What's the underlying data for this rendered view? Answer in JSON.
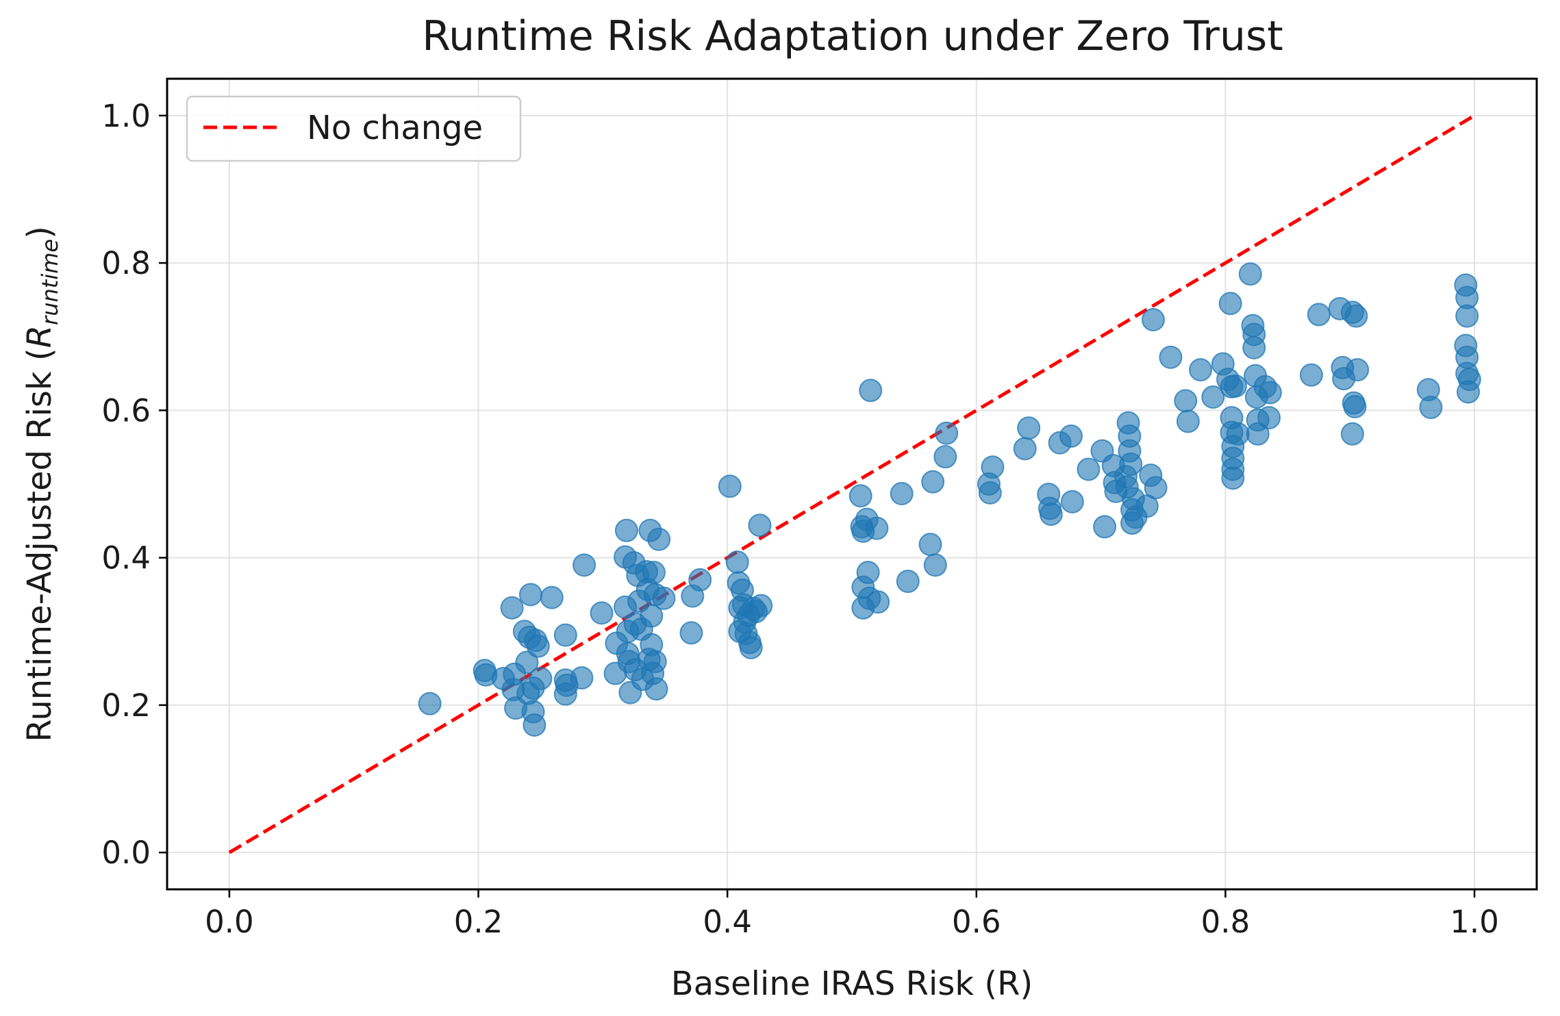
{
  "chart_data": {
    "type": "scatter",
    "title": "Runtime Risk Adaptation under Zero Trust",
    "xlabel": "Baseline IRAS Risk (R)",
    "ylabel_main": "Runtime-Adjusted Risk (",
    "ylabel_symbol": "R",
    "ylabel_subscript": "runtime",
    "ylabel_close": ")",
    "xlim": [
      -0.05,
      1.05
    ],
    "ylim": [
      -0.05,
      1.05
    ],
    "x_ticks": [
      0.0,
      0.2,
      0.4,
      0.6,
      0.8,
      1.0
    ],
    "x_tick_labels": [
      "0.0",
      "0.2",
      "0.4",
      "0.6",
      "0.8",
      "1.0"
    ],
    "y_ticks": [
      0.0,
      0.2,
      0.4,
      0.6,
      0.8,
      1.0
    ],
    "y_tick_labels": [
      "0.0",
      "0.2",
      "0.4",
      "0.6",
      "0.8",
      "1.0"
    ],
    "grid": true,
    "legend": {
      "position": "top-left",
      "entries": [
        {
          "label": "No change",
          "style": "dashed",
          "color": "#ff0000"
        }
      ]
    },
    "reference_line": {
      "name": "No change",
      "x": [
        0.0,
        1.0
      ],
      "y": [
        0.0,
        1.0
      ],
      "color": "#ff0000",
      "style": "dashed"
    },
    "point_color": "#1f77b4",
    "points": [
      [
        0.161,
        0.202
      ],
      [
        0.205,
        0.247
      ],
      [
        0.206,
        0.241
      ],
      [
        0.22,
        0.236
      ],
      [
        0.227,
        0.332
      ],
      [
        0.228,
        0.221
      ],
      [
        0.229,
        0.242
      ],
      [
        0.23,
        0.196
      ],
      [
        0.237,
        0.3
      ],
      [
        0.239,
        0.258
      ],
      [
        0.24,
        0.216
      ],
      [
        0.241,
        0.292
      ],
      [
        0.242,
        0.35
      ],
      [
        0.244,
        0.223
      ],
      [
        0.244,
        0.191
      ],
      [
        0.245,
        0.173
      ],
      [
        0.246,
        0.288
      ],
      [
        0.248,
        0.28
      ],
      [
        0.25,
        0.236
      ],
      [
        0.259,
        0.346
      ],
      [
        0.27,
        0.295
      ],
      [
        0.27,
        0.234
      ],
      [
        0.27,
        0.215
      ],
      [
        0.271,
        0.227
      ],
      [
        0.283,
        0.237
      ],
      [
        0.285,
        0.39
      ],
      [
        0.299,
        0.325
      ],
      [
        0.31,
        0.243
      ],
      [
        0.311,
        0.284
      ],
      [
        0.318,
        0.333
      ],
      [
        0.318,
        0.401
      ],
      [
        0.319,
        0.437
      ],
      [
        0.32,
        0.3
      ],
      [
        0.32,
        0.27
      ],
      [
        0.321,
        0.259
      ],
      [
        0.322,
        0.217
      ],
      [
        0.325,
        0.393
      ],
      [
        0.326,
        0.31
      ],
      [
        0.326,
        0.248
      ],
      [
        0.328,
        0.376
      ],
      [
        0.329,
        0.341
      ],
      [
        0.331,
        0.303
      ],
      [
        0.332,
        0.235
      ],
      [
        0.335,
        0.381
      ],
      [
        0.336,
        0.357
      ],
      [
        0.337,
        0.262
      ],
      [
        0.338,
        0.437
      ],
      [
        0.339,
        0.321
      ],
      [
        0.339,
        0.282
      ],
      [
        0.34,
        0.243
      ],
      [
        0.341,
        0.38
      ],
      [
        0.342,
        0.35
      ],
      [
        0.342,
        0.259
      ],
      [
        0.343,
        0.222
      ],
      [
        0.345,
        0.425
      ],
      [
        0.349,
        0.345
      ],
      [
        0.371,
        0.298
      ],
      [
        0.372,
        0.348
      ],
      [
        0.378,
        0.37
      ],
      [
        0.402,
        0.497
      ],
      [
        0.408,
        0.394
      ],
      [
        0.409,
        0.366
      ],
      [
        0.41,
        0.332
      ],
      [
        0.41,
        0.3
      ],
      [
        0.412,
        0.356
      ],
      [
        0.413,
        0.336
      ],
      [
        0.414,
        0.313
      ],
      [
        0.415,
        0.297
      ],
      [
        0.417,
        0.322
      ],
      [
        0.418,
        0.285
      ],
      [
        0.419,
        0.278
      ],
      [
        0.421,
        0.331
      ],
      [
        0.423,
        0.327
      ],
      [
        0.426,
        0.444
      ],
      [
        0.427,
        0.335
      ],
      [
        0.507,
        0.484
      ],
      [
        0.508,
        0.442
      ],
      [
        0.509,
        0.436
      ],
      [
        0.509,
        0.36
      ],
      [
        0.509,
        0.332
      ],
      [
        0.512,
        0.452
      ],
      [
        0.513,
        0.38
      ],
      [
        0.514,
        0.345
      ],
      [
        0.515,
        0.627
      ],
      [
        0.52,
        0.44
      ],
      [
        0.521,
        0.34
      ],
      [
        0.54,
        0.487
      ],
      [
        0.545,
        0.368
      ],
      [
        0.563,
        0.418
      ],
      [
        0.565,
        0.503
      ],
      [
        0.567,
        0.39
      ],
      [
        0.575,
        0.537
      ],
      [
        0.576,
        0.569
      ],
      [
        0.61,
        0.5
      ],
      [
        0.611,
        0.488
      ],
      [
        0.613,
        0.523
      ],
      [
        0.639,
        0.548
      ],
      [
        0.642,
        0.576
      ],
      [
        0.658,
        0.486
      ],
      [
        0.659,
        0.467
      ],
      [
        0.66,
        0.459
      ],
      [
        0.667,
        0.556
      ],
      [
        0.676,
        0.565
      ],
      [
        0.677,
        0.476
      ],
      [
        0.69,
        0.52
      ],
      [
        0.701,
        0.545
      ],
      [
        0.703,
        0.442
      ],
      [
        0.71,
        0.525
      ],
      [
        0.711,
        0.502
      ],
      [
        0.712,
        0.49
      ],
      [
        0.72,
        0.51
      ],
      [
        0.721,
        0.496
      ],
      [
        0.722,
        0.583
      ],
      [
        0.723,
        0.565
      ],
      [
        0.723,
        0.545
      ],
      [
        0.724,
        0.527
      ],
      [
        0.725,
        0.465
      ],
      [
        0.725,
        0.447
      ],
      [
        0.726,
        0.48
      ],
      [
        0.728,
        0.455
      ],
      [
        0.737,
        0.47
      ],
      [
        0.74,
        0.512
      ],
      [
        0.742,
        0.723
      ],
      [
        0.744,
        0.495
      ],
      [
        0.756,
        0.672
      ],
      [
        0.768,
        0.613
      ],
      [
        0.77,
        0.585
      ],
      [
        0.78,
        0.655
      ],
      [
        0.79,
        0.618
      ],
      [
        0.798,
        0.663
      ],
      [
        0.802,
        0.642
      ],
      [
        0.804,
        0.745
      ],
      [
        0.805,
        0.632
      ],
      [
        0.805,
        0.59
      ],
      [
        0.805,
        0.57
      ],
      [
        0.806,
        0.551
      ],
      [
        0.806,
        0.535
      ],
      [
        0.806,
        0.52
      ],
      [
        0.806,
        0.508
      ],
      [
        0.808,
        0.633
      ],
      [
        0.81,
        0.568
      ],
      [
        0.82,
        0.785
      ],
      [
        0.822,
        0.715
      ],
      [
        0.823,
        0.703
      ],
      [
        0.823,
        0.685
      ],
      [
        0.824,
        0.647
      ],
      [
        0.825,
        0.618
      ],
      [
        0.826,
        0.587
      ],
      [
        0.826,
        0.568
      ],
      [
        0.832,
        0.632
      ],
      [
        0.835,
        0.59
      ],
      [
        0.836,
        0.624
      ],
      [
        0.869,
        0.648
      ],
      [
        0.875,
        0.73
      ],
      [
        0.892,
        0.738
      ],
      [
        0.894,
        0.658
      ],
      [
        0.895,
        0.643
      ],
      [
        0.902,
        0.733
      ],
      [
        0.902,
        0.568
      ],
      [
        0.903,
        0.61
      ],
      [
        0.904,
        0.605
      ],
      [
        0.905,
        0.728
      ],
      [
        0.906,
        0.655
      ],
      [
        0.963,
        0.628
      ],
      [
        0.965,
        0.604
      ],
      [
        0.993,
        0.77
      ],
      [
        0.993,
        0.688
      ],
      [
        0.994,
        0.753
      ],
      [
        0.994,
        0.728
      ],
      [
        0.994,
        0.672
      ],
      [
        0.994,
        0.65
      ],
      [
        0.995,
        0.625
      ],
      [
        0.996,
        0.642
      ]
    ]
  }
}
